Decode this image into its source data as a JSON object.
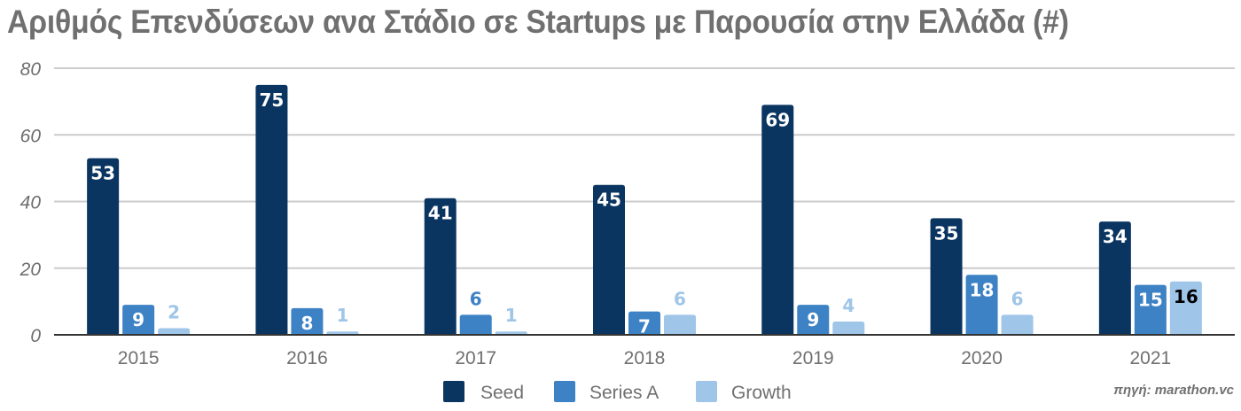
{
  "chart_data": {
    "type": "bar",
    "title": "Αριθμός Επενδύσεων ανα Στάδιο σε Startups με Παρουσία στην Ελλάδα (#)",
    "xlabel": "",
    "ylabel": "",
    "categories": [
      "2015",
      "2016",
      "2017",
      "2018",
      "2019",
      "2020",
      "2021"
    ],
    "series": [
      {
        "name": "Seed",
        "color": "#0b3561",
        "values": [
          53,
          75,
          41,
          45,
          69,
          35,
          34
        ]
      },
      {
        "name": "Series A",
        "color": "#3d82c4",
        "values": [
          9,
          8,
          6,
          7,
          9,
          18,
          15
        ]
      },
      {
        "name": "Growth",
        "color": "#9fc5e8",
        "values": [
          2,
          1,
          1,
          6,
          4,
          6,
          16
        ]
      }
    ],
    "ylim": [
      0,
      80
    ],
    "yticks": [
      0,
      20,
      40,
      60,
      80
    ],
    "grid": true,
    "legend": "bottom-center",
    "source": "πηγή: marathon.vc"
  }
}
